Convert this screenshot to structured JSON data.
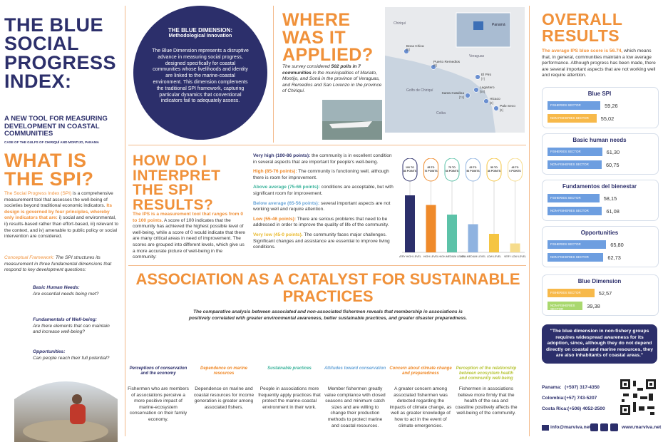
{
  "header": {
    "title": "THE BLUE SOCIAL PROGRESS INDEX:",
    "subtitle": "A NEW TOOL FOR MEASURING DEVELOPMENT IN COASTAL COMMUNITIES",
    "case": "CASE OF THE GULFS OF CHIRIQUÍ AND MONTIJO, PANAMA"
  },
  "what_is": {
    "heading": "WHAT IS THE SPI?",
    "intro_bold": "The Social Progress Index (SPI)",
    "intro": " is a comprehensive measurement tool that assesses the well-being of societies beyond traditional economic indicators. ",
    "principles": "Its design is governed by four principles, whereby only indicators that are:",
    "principles_list": " i) social and environmental, ii) results-based rather than effort-based, iii) relevant to the context, and iv) amenable to public policy or social intervention are considered.",
    "framework_label": "Conceptual Framework:",
    "framework": " The SPI structures its measurement in three fundamental dimensions that respond to key development questions:",
    "dimensions": [
      {
        "name": "Basic Human Needs:",
        "question": "Are essential needs being met?"
      },
      {
        "name": "Fundamentals of Well-being:",
        "question": "Are there elements that can maintain and increase well-being?"
      },
      {
        "name": "Opportunities:",
        "question": " Can people reach their full potential?"
      }
    ]
  },
  "blue_dimension": {
    "title": "THE BLUE DIMENSION:",
    "subtitle": "Methodological Innovation",
    "text": "The Blue Dimension represents a disruptive advance in measuring social progress, designed specifically for coastal communities whose livelihoods and identity are linked to the marine-coastal environment. This dimension complements the traditional SPI framework, capturing particular dynamics that conventional indicators fail to adequately assess."
  },
  "where": {
    "heading": "WHERE WAS IT APPLIED?",
    "text_prefix": "The survey considered ",
    "text_bold": "502 polls in 7 communities",
    "text_rest": " in the municipalities of Mariato, Montijo, and Soná in the province of Veraguas, and Remedios and San Lorenzo in the province of Chiriquí."
  },
  "map": {
    "labels": [
      "Chiriquí",
      "Veraguas",
      "Golfo de Chiriquí",
      "Coiba"
    ],
    "inset": "Panamá",
    "sites": [
      {
        "name": "Boca Chica",
        "count": "[5]"
      },
      {
        "name": "Puerto Remedios",
        "count": "[8]"
      },
      {
        "name": "El Piro",
        "count": "[7]"
      },
      {
        "name": "Lagartero",
        "count": "[50]"
      },
      {
        "name": "Santa Catalina",
        "count": "[74]"
      },
      {
        "name": "Hicaco",
        "count": "[8]"
      },
      {
        "name": "Palo Seco",
        "count": "[6]"
      }
    ]
  },
  "interpret": {
    "heading": "HOW DO I INTERPRET THE SPI RESULTS?",
    "lead": "The IPS is a measurement tool that ranges from 0 to 100 points.",
    "text": " A score of 100 indicates that the community has achieved the highest possible level of well-being, while a score of 0 would indicate that there are many critical areas in need of improvement. The scores are grouped into different levels, which give us a more accurate picture of well-being in the community:",
    "levels": [
      {
        "name": "Very high (100-86 points):",
        "text": " the community is in excellent condition in several aspects that are important for people's well-being.",
        "color": "#2c2f6b"
      },
      {
        "name": "High (85-76 points):",
        "text": " The community is functioning well, although there is room for improvement.",
        "color": "#ef8a2a"
      },
      {
        "name": "Above average (75-66 points):",
        "text": " conditions are acceptable, but with significant room for improvement.",
        "color": "#3bb39b"
      },
      {
        "name": "Below average (65-56 points):",
        "text": " several important aspects are not working well and require attention.",
        "color": "#6aa5d8"
      },
      {
        "name": "Low (55-46 points):",
        "text": " There are serious problems that need to be addressed in order to improve the quality of life of the community.",
        "color": "#ef8a2a"
      },
      {
        "name": "Very low (45-0 points).",
        "text": " The community faces major challenges. Significant changes and assistance are essential to improve living conditions.",
        "color": "#e9b92c"
      }
    ],
    "bars": [
      {
        "points": "100 TO 86 POINTS",
        "level": "VERY HIGH LEVEL",
        "color": "#2c2f6b"
      },
      {
        "points": "85 TO 76 POINTS",
        "level": "HIGH LEVEL",
        "color": "#ef8a2a"
      },
      {
        "points": "75 TO 66 POINTS",
        "level": "HIGH-MEDIUM LEVEL",
        "color": "#5cc2a8"
      },
      {
        "points": "65 TO 56 POINTS",
        "level": "LOW-MEDIUM LEVEL",
        "color": "#8fb3e0"
      },
      {
        "points": "55 TO 46 POINTS",
        "level": "LOW LEVEL",
        "color": "#f5c542"
      },
      {
        "points": "45 TO 0 POINTS",
        "level": "VERY LOW LEVEL",
        "color": "#f6dc8c"
      }
    ]
  },
  "results": {
    "heading": "OVERALL RESULTS",
    "lead": "The average IPS blue score is 56.74,",
    "text": " which means that, in general, communities maintain a low average performance. Although progress has been made, there are several important aspects that are not working well and require attention.",
    "groups": [
      {
        "title": "Blue SPI",
        "rows": [
          {
            "sector": "FISHERIES SECTOR",
            "value": 59.26,
            "label": "59,26",
            "color": "#6d9ee0"
          },
          {
            "sector": "NON-FISHERIES SECTOR",
            "value": 55.02,
            "label": "55,02",
            "color": "#f7b94a"
          }
        ]
      },
      {
        "title": "Basic human needs",
        "rows": [
          {
            "sector": "FISHERIES SECTOR",
            "value": 61.3,
            "label": "61,30",
            "color": "#6d9ee0"
          },
          {
            "sector": "NON-FISHERIES SECTOR",
            "value": 60.75,
            "label": "60,75",
            "color": "#6d9ee0"
          }
        ]
      },
      {
        "title": "Fundamentos del bienestar",
        "rows": [
          {
            "sector": "FISHERIES SECTOR",
            "value": 58.15,
            "label": "58,15",
            "color": "#6d9ee0"
          },
          {
            "sector": "NON-FISHERIES SECTOR",
            "value": 61.08,
            "label": "61,08",
            "color": "#6d9ee0"
          }
        ]
      },
      {
        "title": "Opportunities",
        "rows": [
          {
            "sector": "FISHERIES SECTOR",
            "value": 65.8,
            "label": "65,80",
            "color": "#6d9ee0"
          },
          {
            "sector": "NON-FISHERIES SECTOR",
            "value": 62.73,
            "label": "62,73",
            "color": "#6d9ee0"
          }
        ]
      },
      {
        "title": "Blue Dimension",
        "rows": [
          {
            "sector": "FISHERIES SECTOR",
            "value": 52.57,
            "label": "52,57",
            "color": "#f7b94a"
          },
          {
            "sector": "NON-FISHERIES SECTOR",
            "value": 39.38,
            "label": "39,38",
            "color": "#a9d86e"
          }
        ]
      }
    ],
    "quote": "\"The blue dimension in non-fishery groups requires widespread awareness for its adoption, since, although they do not depend directly on coastal and marine resources, they are also inhabitants of coastal areas.\"",
    "contacts": [
      {
        "country": "Panama:",
        "phone": "(+507) 317-4350"
      },
      {
        "country": "Colombia:",
        "phone": "(+57) 743-5207"
      },
      {
        "country": "Costa Rica:",
        "phone": "(+506) 4052-2500"
      }
    ],
    "email": "info@marviva.net",
    "web": "www.marviva.net"
  },
  "association": {
    "heading": "ASSOCIATION AS A CATALYST FOR SUSTAINABLE PRACTICES",
    "text": "The comparative analysis between associated and non-associated fishermen reveals that membership in associations is positively correlated with greater environmental awareness, better sustainable practices, and greater disaster preparedness.",
    "items": [
      {
        "title": "Perceptions of conservation and the economy",
        "text": "Fishermen who are members of associations perceive a more positive impact of marine-ecosystem conservation on their family economy.",
        "color": "#2c2f6b"
      },
      {
        "title": "Dependence on marine resources",
        "text": "Dependence on marine and coastal resources for income generation is greater among associated fishers.",
        "color": "#ef8a2a"
      },
      {
        "title": "Sustainable practices",
        "text": "People in associations more frequently apply practices that protect the marine-coastal environment in their work.",
        "color": "#3bb39b"
      },
      {
        "title": "Attitudes toward conservation",
        "text": "Member fishermen greatly value compliance with closed seasons and minimum catch sizes and are willing to change their production methods to protect marine and coastal resources.",
        "color": "#6aa5d8"
      },
      {
        "title": "Concern about climate change and preparedness",
        "text": "A greater concern among associated fishermen was detected regarding the impacts of climate change, as well as greater knowledge of how to act in the event of climate emergencies.",
        "color": "#ef8a2a"
      },
      {
        "title": "Perception of the relationship between ecosystem health and community well-being",
        "text": "Fishermen in associations believe more firmly that the health of the sea and coastline positively affects the well-being of the community.",
        "color": "#b8c53a"
      }
    ]
  }
}
